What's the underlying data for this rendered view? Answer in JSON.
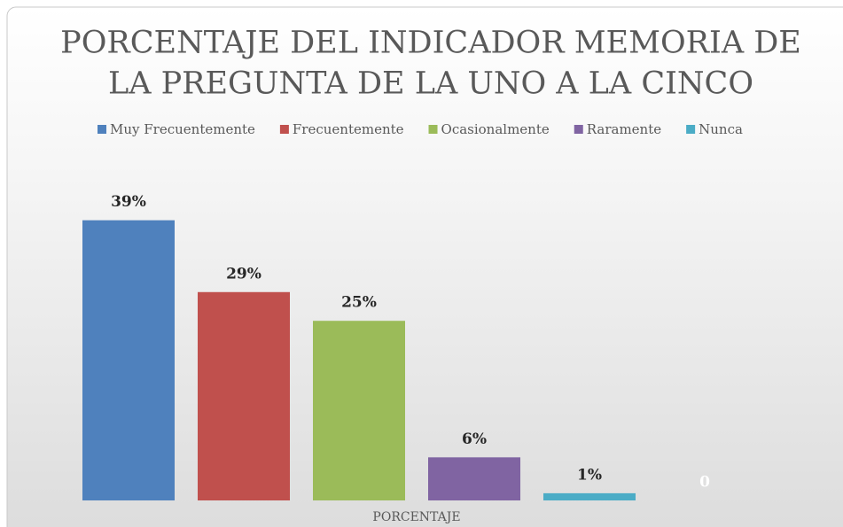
{
  "chart_data": {
    "type": "bar",
    "title": [
      "PORCENTAJE DEL INDICADOR MEMORIA DE",
      "LA PREGUNTA DE  LA UNO A LA CINCO"
    ],
    "categories": [
      "PORCENTAJE"
    ],
    "series": [
      {
        "name": "Muy Frecuentemente",
        "color": "#4f81bd",
        "values": [
          39
        ],
        "value_labels": [
          "39%"
        ]
      },
      {
        "name": "Frecuentemente",
        "color": "#c0504d",
        "values": [
          29
        ],
        "value_labels": [
          "29%"
        ]
      },
      {
        "name": "Ocasionalmente",
        "color": "#9bbb59",
        "values": [
          25
        ],
        "value_labels": [
          "25%"
        ]
      },
      {
        "name": "Raramente",
        "color": "#8064a2",
        "values": [
          6
        ],
        "value_labels": [
          "6%"
        ]
      },
      {
        "name": "Nunca",
        "color": "#4bacc6",
        "values": [
          1
        ],
        "value_labels": [
          "1%"
        ]
      },
      {
        "name": null,
        "color": "#ffffff",
        "values": [
          0
        ]
      }
    ],
    "ylim": [
      0,
      45
    ],
    "legend": "top"
  }
}
